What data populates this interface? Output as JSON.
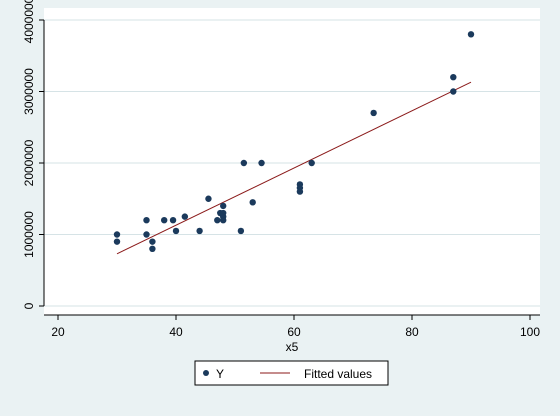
{
  "colors": {
    "background": "#eaf2f3",
    "plot_background": "#ffffff",
    "marker": "#1b3a5c",
    "fitted_line": "#8b1a1a",
    "grid": "#d6e3e6",
    "axis": "#000000"
  },
  "chart_data": {
    "type": "scatter",
    "xlabel": "x5",
    "ylabel": "",
    "title": "",
    "xlim": [
      20,
      100
    ],
    "ylim": [
      0,
      4000000
    ],
    "xticks": [
      20,
      40,
      60,
      80,
      100
    ],
    "yticks": [
      0,
      1000000,
      2000000,
      3000000,
      4000000
    ],
    "grid": true,
    "legend_position": "bottom",
    "legend": [
      {
        "label": "Y",
        "kind": "marker"
      },
      {
        "label": "Fitted values",
        "kind": "line"
      }
    ],
    "series": [
      {
        "name": "Y",
        "kind": "scatter",
        "points": [
          {
            "x": 30,
            "y": 1000000
          },
          {
            "x": 30,
            "y": 900000
          },
          {
            "x": 35,
            "y": 1200000
          },
          {
            "x": 35,
            "y": 1000000
          },
          {
            "x": 36,
            "y": 900000
          },
          {
            "x": 36,
            "y": 800000
          },
          {
            "x": 38,
            "y": 1200000
          },
          {
            "x": 39.5,
            "y": 1200000
          },
          {
            "x": 40,
            "y": 1050000
          },
          {
            "x": 41.5,
            "y": 1250000
          },
          {
            "x": 44,
            "y": 1050000
          },
          {
            "x": 45.5,
            "y": 1500000
          },
          {
            "x": 47,
            "y": 1200000
          },
          {
            "x": 47.5,
            "y": 1300000
          },
          {
            "x": 48,
            "y": 1400000
          },
          {
            "x": 48,
            "y": 1300000
          },
          {
            "x": 48,
            "y": 1250000
          },
          {
            "x": 48,
            "y": 1200000
          },
          {
            "x": 51,
            "y": 1050000
          },
          {
            "x": 51.5,
            "y": 2000000
          },
          {
            "x": 53,
            "y": 1450000
          },
          {
            "x": 54.5,
            "y": 2000000
          },
          {
            "x": 61,
            "y": 1700000
          },
          {
            "x": 61,
            "y": 1650000
          },
          {
            "x": 61,
            "y": 1600000
          },
          {
            "x": 63,
            "y": 2000000
          },
          {
            "x": 73.5,
            "y": 2700000
          },
          {
            "x": 87,
            "y": 3200000
          },
          {
            "x": 87,
            "y": 3000000
          },
          {
            "x": 90,
            "y": 3800000
          }
        ]
      },
      {
        "name": "Fitted values",
        "kind": "line",
        "points": [
          {
            "x": 30,
            "y": 730000
          },
          {
            "x": 90,
            "y": 3130000
          }
        ]
      }
    ]
  }
}
